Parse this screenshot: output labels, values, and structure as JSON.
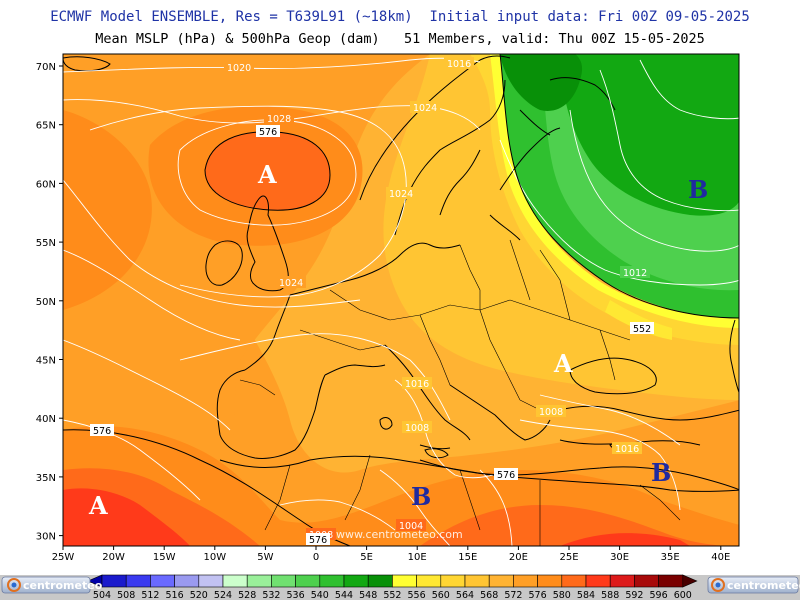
{
  "header": {
    "title_line1": "ECMWF Model ENSEMBLE, Res = T639L91 (~18km)  Initial input data: Fri 00Z 09-05-2025",
    "title_line2": "Mean MSLP (hPa) & 500hPa Geop (dam)   51 Members, valid: Thu 00Z 15-05-2025"
  },
  "map": {
    "lat_labels": [
      "70N",
      "65N",
      "60N",
      "55N",
      "50N",
      "45N",
      "40N",
      "35N",
      "30N"
    ],
    "lon_labels": [
      "25W",
      "20W",
      "15W",
      "10W",
      "5W",
      "0",
      "5E",
      "10E",
      "15E",
      "20E",
      "25E",
      "30E",
      "35E",
      "40E"
    ],
    "pressure_centers": [
      {
        "label": "A",
        "color": "#ffffff"
      },
      {
        "label": "B",
        "color": "#1f2aa0"
      },
      {
        "label": "A",
        "color": "#ffffff"
      },
      {
        "label": "A",
        "color": "#ffffff"
      },
      {
        "label": "B",
        "color": "#1f2aa0"
      },
      {
        "label": "B",
        "color": "#1f2aa0"
      }
    ],
    "isobar_labels": [
      "1020",
      "1016",
      "1028",
      "1024",
      "1024",
      "1024",
      "1012",
      "1016",
      "1008",
      "1016",
      "1004",
      "1008",
      "1008"
    ],
    "geopotential_labels": [
      "576",
      "552",
      "576",
      "576",
      "576"
    ],
    "watermark": "www.centrometeo.com"
  },
  "legend": {
    "values": [
      "504",
      "508",
      "512",
      "516",
      "520",
      "524",
      "528",
      "532",
      "536",
      "540",
      "544",
      "548",
      "552",
      "556",
      "560",
      "564",
      "568",
      "572",
      "576",
      "580",
      "584",
      "588",
      "592",
      "596",
      "600"
    ],
    "colors": [
      "#0000a8",
      "#1a1acc",
      "#3a3af0",
      "#6a6aff",
      "#9a9af0",
      "#c2c2f2",
      "#ccffcc",
      "#9af09a",
      "#70e070",
      "#4ed04e",
      "#2fc02f",
      "#12a812",
      "#089008",
      "#ffff33",
      "#ffe833",
      "#ffd633",
      "#ffc533",
      "#ffb333",
      "#ff9f26",
      "#ff8c1a",
      "#ff6a1a",
      "#ff3a1a",
      "#dd1a1a",
      "#a80a0a",
      "#7a0000",
      "#4a0000"
    ]
  },
  "logos": {
    "left": "centrometeo",
    "right": "centrometeo"
  }
}
